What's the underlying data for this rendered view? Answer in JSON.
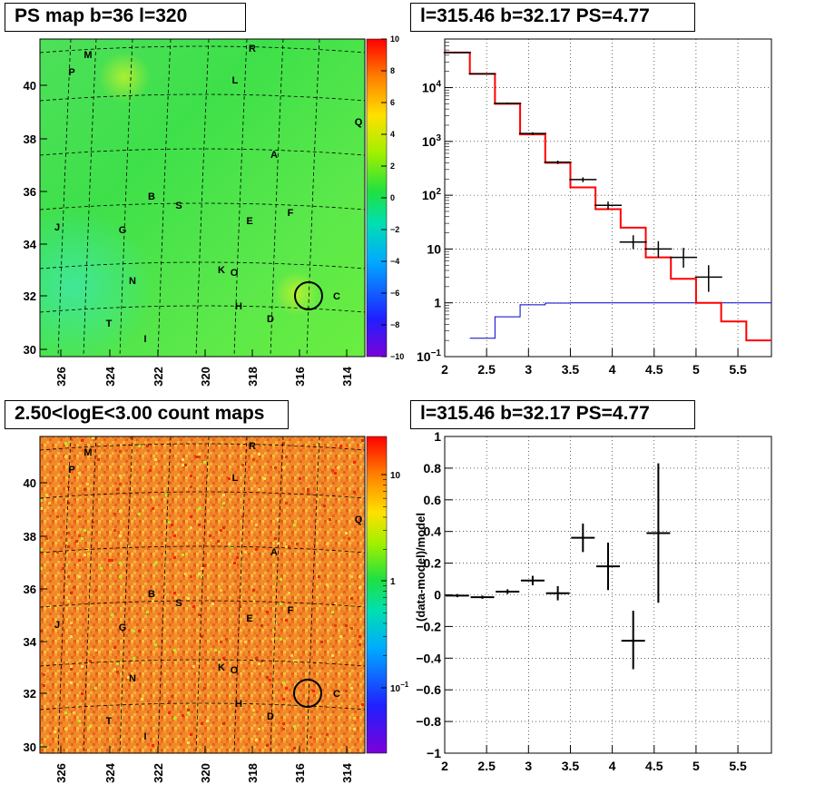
{
  "titles": {
    "ps_map": "PS map b=36 l=320",
    "spectrum": "l=315.46 b=32.17 PS=4.77",
    "count_map": "2.50<logE<3.00 count maps",
    "residual": "l=315.46 b=32.17 PS=4.77"
  },
  "colors": {
    "model_line": "#ff0000",
    "bg_line": "#0000cc",
    "data": "#000000",
    "marker_circle": "#000000"
  },
  "chart_data": [
    {
      "type": "heatmap",
      "title": "PS map b=36 l=320",
      "colorbar": {
        "min": -10,
        "max": 10,
        "ticks": [
          "10",
          "8",
          "6",
          "4",
          "2",
          "0",
          "−2",
          "−4",
          "−6",
          "−8",
          "−10"
        ]
      },
      "x_ticks": [
        "326",
        "324",
        "322",
        "320",
        "318",
        "316",
        "314"
      ],
      "y_ticks": [
        "40",
        "38",
        "36",
        "34",
        "32",
        "30"
      ],
      "source_labels": [
        "M",
        "R",
        "P",
        "L",
        "Q",
        "A",
        "B",
        "S",
        "J",
        "G",
        "E",
        "F",
        "K",
        "O",
        "N",
        "C",
        "H",
        "D",
        "T",
        "I"
      ],
      "marker": {
        "l": 315.46,
        "b": 32.17
      }
    },
    {
      "type": "line",
      "title": "l=315.46 b=32.17 PS=4.77",
      "xlabel": "",
      "ylabel": "",
      "xlim": [
        2,
        5.9
      ],
      "ylim": [
        0.1,
        80000
      ],
      "log_y": true,
      "x_ticks": [
        "2",
        "2.5",
        "3",
        "3.5",
        "4",
        "4.5",
        "5",
        "5.5"
      ],
      "y_ticks": [
        {
          "v": 10000,
          "base": "10",
          "exp": "4"
        },
        {
          "v": 1000,
          "base": "10",
          "exp": "3"
        },
        {
          "v": 100,
          "base": "10",
          "exp": "2"
        },
        {
          "v": 10,
          "base": "10",
          "exp": ""
        },
        {
          "v": 1,
          "base": "1",
          "exp": ""
        },
        {
          "v": 0.1,
          "base": "10",
          "exp": "−1"
        }
      ],
      "model_steps": {
        "edges": [
          2.0,
          2.3,
          2.6,
          2.9,
          3.2,
          3.5,
          3.8,
          4.1,
          4.4,
          4.7,
          5.0,
          5.3,
          5.6,
          5.9
        ],
        "values": [
          45000,
          18000,
          5000,
          1350,
          400,
          140,
          55,
          25,
          7,
          2.8,
          1,
          0.45,
          0.2
        ]
      },
      "background_steps": {
        "edges": [
          2.3,
          2.6,
          2.9,
          3.2,
          3.5,
          5.9
        ],
        "values": [
          0.22,
          0.55,
          0.92,
          0.99,
          1.0
        ]
      },
      "points": [
        {
          "x": 2.15,
          "y": 45000,
          "ylo": 44000,
          "yhi": 46000
        },
        {
          "x": 2.45,
          "y": 18000,
          "ylo": 17500,
          "yhi": 18500
        },
        {
          "x": 2.75,
          "y": 5100,
          "ylo": 4900,
          "yhi": 5300
        },
        {
          "x": 3.05,
          "y": 1400,
          "ylo": 1320,
          "yhi": 1480
        },
        {
          "x": 3.35,
          "y": 410,
          "ylo": 380,
          "yhi": 440
        },
        {
          "x": 3.65,
          "y": 195,
          "ylo": 175,
          "yhi": 215
        },
        {
          "x": 3.95,
          "y": 65,
          "ylo": 55,
          "yhi": 76
        },
        {
          "x": 4.25,
          "y": 13.5,
          "ylo": 10,
          "yhi": 18
        },
        {
          "x": 4.55,
          "y": 10,
          "ylo": 7,
          "yhi": 14
        },
        {
          "x": 4.85,
          "y": 7,
          "ylo": 4.5,
          "yhi": 10.5
        },
        {
          "x": 5.15,
          "y": 3,
          "ylo": 1.6,
          "yhi": 5
        }
      ]
    },
    {
      "type": "heatmap",
      "title": "2.50<logE<3.00 count maps",
      "colorbar": {
        "scale": "log",
        "ticks": [
          {
            "v": 10,
            "base": "10",
            "exp": ""
          },
          {
            "v": 1,
            "base": "1",
            "exp": ""
          },
          {
            "v": 0.1,
            "base": "10",
            "exp": "−1"
          }
        ]
      },
      "x_ticks": [
        "326",
        "324",
        "322",
        "320",
        "318",
        "316",
        "314"
      ],
      "y_ticks": [
        "40",
        "38",
        "36",
        "34",
        "32",
        "30"
      ],
      "source_labels": [
        "M",
        "R",
        "P",
        "L",
        "Q",
        "A",
        "B",
        "S",
        "J",
        "G",
        "E",
        "F",
        "K",
        "O",
        "N",
        "C",
        "H",
        "D",
        "T",
        "I"
      ],
      "marker": {
        "l": 315.46,
        "b": 32.17
      }
    },
    {
      "type": "scatter",
      "title": "l=315.46 b=32.17 PS=4.77",
      "ylabel": "(data-model)/model",
      "xlim": [
        2,
        5.9
      ],
      "ylim": [
        -1,
        1
      ],
      "x_ticks": [
        "2",
        "2.5",
        "3",
        "3.5",
        "4",
        "4.5",
        "5",
        "5.5"
      ],
      "y_ticks": [
        "1",
        "0.8",
        "0.6",
        "0.4",
        "0.2",
        "0",
        "−0.2",
        "−0.4",
        "−0.6",
        "−0.8",
        "−1"
      ],
      "points": [
        {
          "x": 2.15,
          "y": -0.005,
          "ylo": -0.015,
          "yhi": 0.005
        },
        {
          "x": 2.45,
          "y": -0.015,
          "ylo": -0.025,
          "yhi": -0.005
        },
        {
          "x": 2.75,
          "y": 0.02,
          "ylo": 0.005,
          "yhi": 0.035
        },
        {
          "x": 3.05,
          "y": 0.09,
          "ylo": 0.06,
          "yhi": 0.12
        },
        {
          "x": 3.35,
          "y": 0.01,
          "ylo": -0.035,
          "yhi": 0.055
        },
        {
          "x": 3.65,
          "y": 0.36,
          "ylo": 0.27,
          "yhi": 0.45
        },
        {
          "x": 3.95,
          "y": 0.18,
          "ylo": 0.03,
          "yhi": 0.33
        },
        {
          "x": 4.25,
          "y": -0.29,
          "ylo": -0.47,
          "yhi": -0.1
        },
        {
          "x": 4.55,
          "y": 0.39,
          "ylo": -0.05,
          "yhi": 0.83
        }
      ]
    }
  ]
}
